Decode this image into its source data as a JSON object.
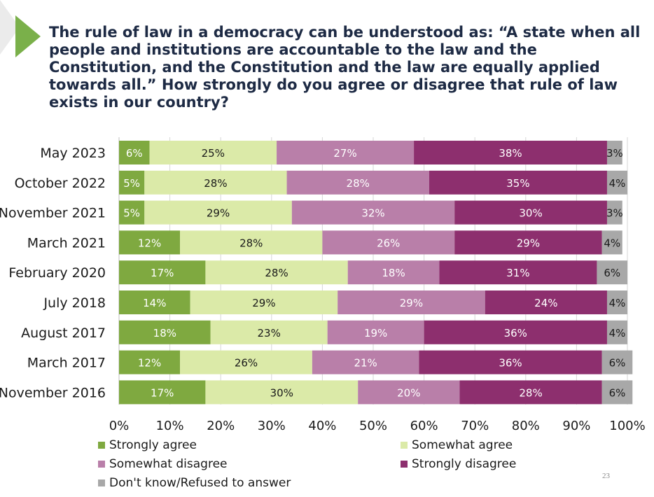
{
  "title": "The rule of law in a democracy can be understood as: “A state when all people and institutions are accountable to the law and the Constitution, and the Constitution and the law are equally applied towards all.” How strongly do you agree or disagree that rule of law exists in our country?",
  "page_number": "23",
  "colors": {
    "accent_triangle": "#7ab04a",
    "deco_bg": "#e8e8e8",
    "title_text": "#1d2a44"
  },
  "chart_data": {
    "type": "bar",
    "orientation": "horizontal",
    "stacked": true,
    "categories": [
      "May 2023",
      "October 2022",
      "November 2021",
      "March 2021",
      "February 2020",
      "July 2018",
      "August 2017",
      "March 2017",
      "November 2016"
    ],
    "series": [
      {
        "name": "Strongly agree",
        "color": "#7fa940",
        "label_color": "#ffffff",
        "values": [
          6,
          5,
          5,
          12,
          17,
          14,
          18,
          12,
          17
        ],
        "labels": [
          "6%",
          "5%",
          "5%",
          "12%",
          "17%",
          "14%",
          "18%",
          "12%",
          "17%"
        ]
      },
      {
        "name": "Somewhat agree",
        "color": "#dbeaa8",
        "label_color": "#1a1a1a",
        "values": [
          25,
          28,
          29,
          28,
          28,
          29,
          23,
          26,
          30
        ],
        "labels": [
          "25%",
          "28%",
          "29%",
          "28%",
          "28%",
          "29%",
          "23%",
          "26%",
          "30%"
        ]
      },
      {
        "name": "Somewhat disagree",
        "color": "#b97fa9",
        "label_color": "#ffffff",
        "values": [
          27,
          28,
          32,
          26,
          18,
          29,
          19,
          21,
          20
        ],
        "labels": [
          "27%",
          "28%",
          "32%",
          "26%",
          "18%",
          "29%",
          "19%",
          "21%",
          "20%"
        ]
      },
      {
        "name": "Strongly disagree",
        "color": "#8d2f6e",
        "label_color": "#ffffff",
        "values": [
          38,
          35,
          30,
          29,
          31,
          24,
          36,
          36,
          28
        ],
        "labels": [
          "38%",
          "35%",
          "30%",
          "29%",
          "31%",
          "24%",
          "36%",
          "36%",
          "28%"
        ]
      },
      {
        "name": "Don't know/Refused to answer",
        "color": "#a8a8a8",
        "label_color": "#1a1a1a",
        "values": [
          3,
          4,
          3,
          4,
          6,
          4,
          4,
          6,
          6
        ],
        "labels": [
          "3%",
          "4%",
          "3%",
          "4%",
          "6%",
          "4%",
          "4%",
          "6%",
          "6%"
        ]
      }
    ],
    "xlim": [
      0,
      100
    ],
    "x_ticks": [
      "0%",
      "10%",
      "20%",
      "30%",
      "40%",
      "50%",
      "60%",
      "70%",
      "80%",
      "90%",
      "100%"
    ],
    "grid": true,
    "legend_position": "bottom"
  }
}
